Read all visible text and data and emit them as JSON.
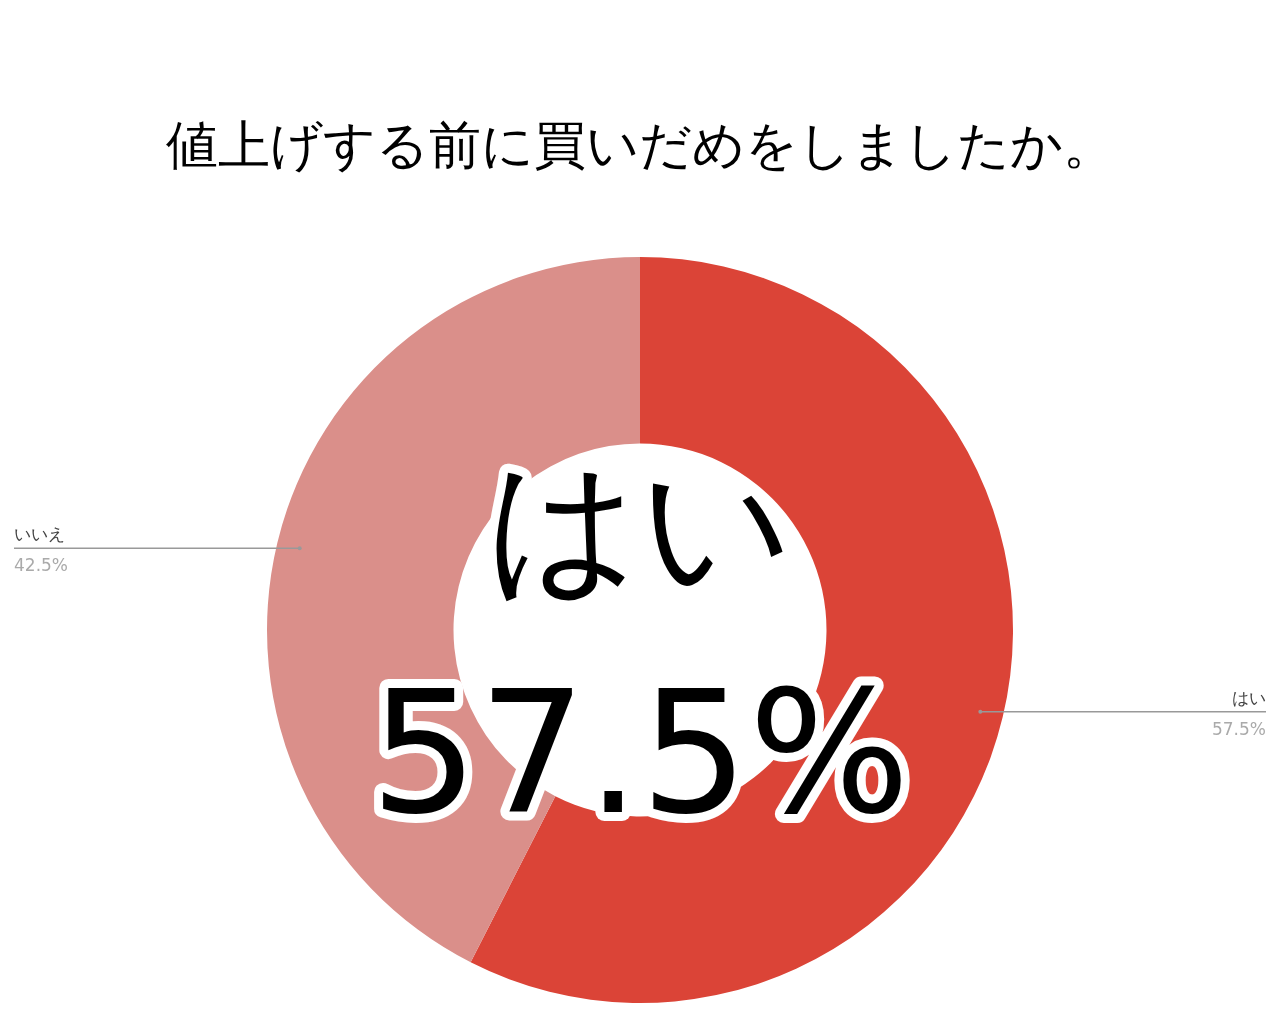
{
  "chart_data": {
    "type": "donut",
    "title": "値上げする前に買いだめをしましたか。",
    "categories": [
      "はい",
      "いいえ"
    ],
    "values": [
      57.5,
      42.5
    ],
    "colors": [
      "#db4437",
      "#da8f8a"
    ],
    "value_labels": [
      "57.5%",
      "42.5%"
    ],
    "annotations": [
      "はい",
      "57.5%"
    ]
  }
}
